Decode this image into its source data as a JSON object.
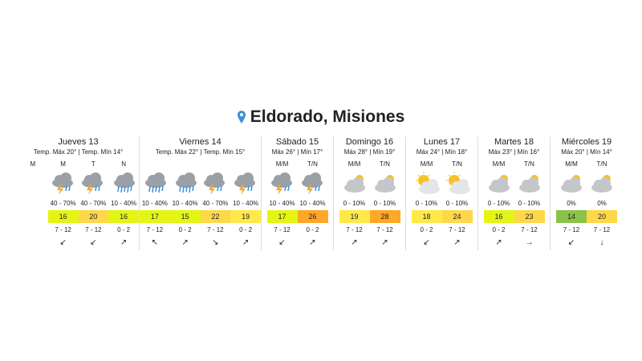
{
  "header": {
    "title": "Eldorado, Misiones"
  },
  "days": [
    {
      "name": "Jueves 13",
      "summary": "Temp. Máx 20° | Temp. Mín 14°",
      "periods": [
        {
          "label": "M"
        },
        {
          "label": "M",
          "icon": "storm",
          "precip": "40 - 70%",
          "temp": 16,
          "color": "#e4f516",
          "wind": "7 - 12",
          "arrow": "↙"
        },
        {
          "label": "T",
          "icon": "storm",
          "precip": "40 - 70%",
          "temp": 20,
          "color": "#ffd84a",
          "wind": "7 - 12",
          "arrow": "↙"
        },
        {
          "label": "N",
          "icon": "rain",
          "precip": "10 - 40%",
          "temp": 16,
          "color": "#e4f516",
          "wind": "0 - 2",
          "arrow": "↗"
        }
      ]
    },
    {
      "name": "Viernes 14",
      "summary": "Temp. Máx 22° | Temp. Mín 15°",
      "periods": [
        {
          "icon": "rain",
          "precip": "10 - 40%",
          "temp": 17,
          "color": "#e4f516",
          "wind": "7 - 12",
          "arrow": "↖"
        },
        {
          "icon": "rain",
          "precip": "10 - 40%",
          "temp": 15,
          "color": "#e4f516",
          "wind": "0 - 2",
          "arrow": "↗"
        },
        {
          "icon": "storm",
          "precip": "40 - 70%",
          "temp": 22,
          "color": "#ffd84a",
          "wind": "7 - 12",
          "arrow": "↘"
        },
        {
          "icon": "storm",
          "precip": "10 - 40%",
          "temp": 19,
          "color": "#ffe94a",
          "wind": "0 - 2",
          "arrow": "↗"
        }
      ]
    },
    {
      "name": "Sábado 15",
      "summary": "Máx 26° | Mín 17°",
      "periods": [
        {
          "label": "M/M",
          "icon": "storm",
          "precip": "10 - 40%",
          "temp": 17,
          "color": "#e4f516",
          "wind": "7 - 12",
          "arrow": "↙"
        },
        {
          "label": "T/N",
          "icon": "storm",
          "precip": "10 - 40%",
          "temp": 26,
          "color": "#ffa726",
          "wind": "0 - 2",
          "arrow": "↗"
        }
      ]
    },
    {
      "name": "Domingo 16",
      "summary": "Máx 28° | Mín 19°",
      "periods": [
        {
          "label": "M/M",
          "icon": "cloud-sun",
          "precip": "0 - 10%",
          "temp": 19,
          "color": "#ffe94a",
          "wind": "7 - 12",
          "arrow": "↗"
        },
        {
          "label": "T/N",
          "icon": "cloud-sun",
          "precip": "0 - 10%",
          "temp": 28,
          "color": "#ffa726",
          "wind": "7 - 12",
          "arrow": "↗"
        }
      ]
    },
    {
      "name": "Lunes 17",
      "summary": "Máx 24° | Mín 18°",
      "periods": [
        {
          "label": "M/M",
          "icon": "sun-cloud",
          "precip": "0 - 10%",
          "temp": 18,
          "color": "#ffe94a",
          "wind": "0 - 2",
          "arrow": "↙"
        },
        {
          "label": "T/N",
          "icon": "sun-cloud",
          "precip": "0 - 10%",
          "temp": 24,
          "color": "#ffd84a",
          "wind": "7 - 12",
          "arrow": "↗"
        }
      ]
    },
    {
      "name": "Martes 18",
      "summary": "Máx 23° | Mín 16°",
      "periods": [
        {
          "label": "M/M",
          "icon": "cloud-sun",
          "precip": "0 - 10%",
          "temp": 16,
          "color": "#e4f516",
          "wind": "0 - 2",
          "arrow": "↗"
        },
        {
          "label": "T/N",
          "icon": "cloud-sun",
          "precip": "0 - 10%",
          "temp": 23,
          "color": "#ffd84a",
          "wind": "7 - 12",
          "arrow": "→"
        }
      ]
    },
    {
      "name": "Miércoles 19",
      "summary": "Máx 20° | Mín 14°",
      "periods": [
        {
          "label": "M/M",
          "icon": "cloud-sun",
          "precip": "0%",
          "temp": 14,
          "color": "#8bc34a",
          "wind": "7 - 12",
          "arrow": "↙"
        },
        {
          "label": "T/N",
          "icon": "cloud-sun",
          "precip": "0%",
          "temp": 20,
          "color": "#ffd84a",
          "wind": "7 - 12",
          "arrow": "↓"
        }
      ]
    }
  ]
}
